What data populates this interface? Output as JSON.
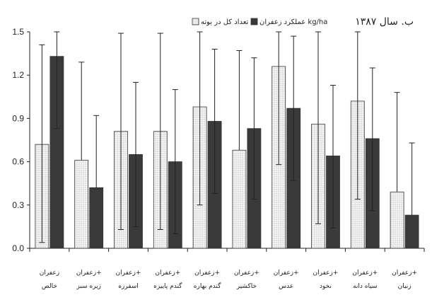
{
  "chart_data": {
    "type": "bar",
    "title": "ب. سال ۱۳۸۷",
    "ylim": [
      0,
      1.5
    ],
    "yticks": [
      "0.0",
      "0.3",
      "0.6",
      "0.9",
      "1.2",
      "1.5"
    ],
    "grid": false,
    "legend_position": "top",
    "categories": [
      [
        "زعفران",
        "خالص"
      ],
      [
        "زعفران+",
        "زیره سبز"
      ],
      [
        "زعفران+",
        "اسفرزه"
      ],
      [
        "زعفران+",
        "گندم پاییزه"
      ],
      [
        "زعفران+",
        "گندم بهاره"
      ],
      [
        "زعفران+",
        "خاکشیر"
      ],
      [
        "زعفران+",
        "عدس"
      ],
      [
        "زعفران+",
        "نخود"
      ],
      [
        "زعفران+",
        "سیاه دانه"
      ],
      [
        "زعفران+",
        "زنیان"
      ]
    ],
    "series": [
      {
        "name": "تعداد کل در بوته",
        "color": "#efefef",
        "pattern": "dotted",
        "values": [
          0.72,
          0.61,
          0.81,
          0.81,
          0.98,
          0.68,
          1.26,
          0.86,
          1.02,
          0.39
        ],
        "error_upper": [
          1.41,
          1.29,
          1.49,
          1.49,
          1.5,
          1.37,
          1.5,
          1.5,
          1.5,
          1.08
        ],
        "error_lower": [
          0.04,
          null,
          0.13,
          0.13,
          0.3,
          null,
          0.58,
          0.17,
          0.34,
          null
        ]
      },
      {
        "name": "عملکرد زعفران kg/ha",
        "color": "#3a3a3a",
        "pattern": "solid",
        "values": [
          1.33,
          0.42,
          0.65,
          0.6,
          0.88,
          0.83,
          0.97,
          0.64,
          0.76,
          0.23
        ],
        "error_upper": [
          1.5,
          0.92,
          1.15,
          1.1,
          1.38,
          1.32,
          1.47,
          1.13,
          1.25,
          0.73
        ],
        "error_lower": [
          0.83,
          null,
          0.15,
          0.1,
          0.38,
          0.34,
          0.47,
          0.14,
          0.26,
          null
        ]
      }
    ]
  }
}
